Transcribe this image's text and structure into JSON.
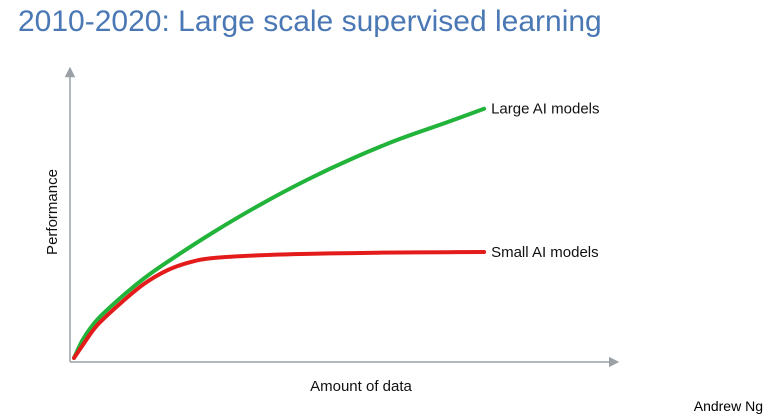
{
  "slide": {
    "title": "2010-2020: Large scale supervised learning",
    "credit": "Andrew Ng"
  },
  "colors": {
    "title": "#4a78b4",
    "axis": "#9aa0a6",
    "large_series": "#22b33a",
    "small_series": "#e31b1b"
  },
  "chart_data": {
    "type": "line",
    "title": "",
    "xlabel": "Amount of data",
    "ylabel": "Performance",
    "xlim": [
      0,
      100
    ],
    "ylim": [
      0,
      100
    ],
    "grid": false,
    "legend": "inline-right",
    "axis_ticks": false,
    "series": [
      {
        "name": "Large AI models",
        "key": "large",
        "x": [
          0,
          2,
          5,
          10,
          15,
          20,
          30,
          40,
          50,
          60,
          70,
          80,
          88
        ],
        "y": [
          0,
          7,
          14,
          22,
          29,
          35,
          46,
          56,
          65,
          73,
          80,
          86,
          91
        ]
      },
      {
        "name": "Small AI models",
        "key": "small",
        "x": [
          0,
          2,
          5,
          10,
          15,
          20,
          25,
          30,
          40,
          50,
          60,
          70,
          80,
          88
        ],
        "y": [
          0,
          5,
          12,
          20,
          27,
          32,
          35,
          36.5,
          37.5,
          38,
          38.3,
          38.5,
          38.6,
          38.7
        ]
      }
    ]
  }
}
